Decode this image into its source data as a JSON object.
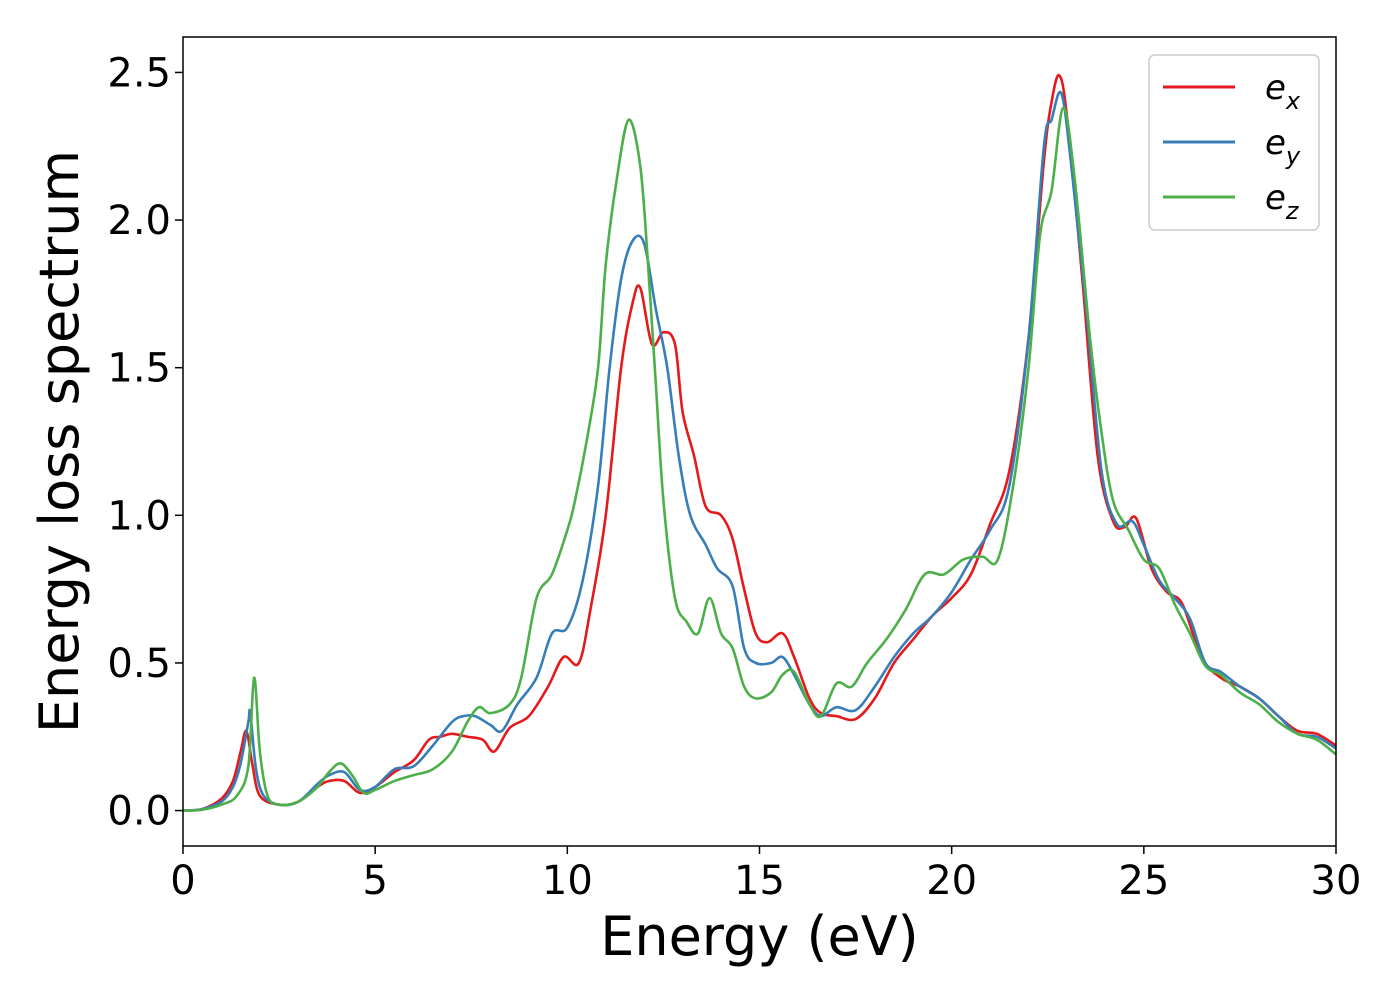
{
  "chart_data": {
    "type": "line",
    "title": "",
    "xlabel": "Energy (eV)",
    "ylabel": "Energy loss spectrum",
    "xlim": [
      0,
      30
    ],
    "ylim": [
      -0.12,
      2.62
    ],
    "xticks": [
      0,
      5,
      10,
      15,
      20,
      25,
      30
    ],
    "yticks": [
      "0.0",
      "0.5",
      "1.0",
      "1.5",
      "2.0",
      "2.5"
    ],
    "grid": false,
    "legend_position": "top-right",
    "series": [
      {
        "name": "e_x",
        "label_main": "e",
        "label_sub": "x",
        "color": "#e41a1c",
        "points": [
          [
            0,
            0
          ],
          [
            0.5,
            0.005
          ],
          [
            1.0,
            0.04
          ],
          [
            1.3,
            0.1
          ],
          [
            1.5,
            0.2
          ],
          [
            1.65,
            0.27
          ],
          [
            1.8,
            0.16
          ],
          [
            2.0,
            0.05
          ],
          [
            2.5,
            0.02
          ],
          [
            3.0,
            0.03
          ],
          [
            3.5,
            0.08
          ],
          [
            3.8,
            0.1
          ],
          [
            4.2,
            0.1
          ],
          [
            4.6,
            0.06
          ],
          [
            5.0,
            0.08
          ],
          [
            5.5,
            0.13
          ],
          [
            6.0,
            0.17
          ],
          [
            6.4,
            0.24
          ],
          [
            6.7,
            0.25
          ],
          [
            7.0,
            0.26
          ],
          [
            7.4,
            0.25
          ],
          [
            7.8,
            0.24
          ],
          [
            8.1,
            0.2
          ],
          [
            8.5,
            0.28
          ],
          [
            9.0,
            0.32
          ],
          [
            9.5,
            0.42
          ],
          [
            9.9,
            0.52
          ],
          [
            10.3,
            0.5
          ],
          [
            10.6,
            0.68
          ],
          [
            11.0,
            1.0
          ],
          [
            11.4,
            1.5
          ],
          [
            11.7,
            1.72
          ],
          [
            11.9,
            1.77
          ],
          [
            12.2,
            1.58
          ],
          [
            12.5,
            1.62
          ],
          [
            12.8,
            1.58
          ],
          [
            13.0,
            1.35
          ],
          [
            13.3,
            1.2
          ],
          [
            13.6,
            1.03
          ],
          [
            14.0,
            1.0
          ],
          [
            14.3,
            0.92
          ],
          [
            14.6,
            0.75
          ],
          [
            14.9,
            0.6
          ],
          [
            15.2,
            0.57
          ],
          [
            15.6,
            0.6
          ],
          [
            15.9,
            0.52
          ],
          [
            16.3,
            0.38
          ],
          [
            16.6,
            0.33
          ],
          [
            17.0,
            0.32
          ],
          [
            17.5,
            0.31
          ],
          [
            18.0,
            0.38
          ],
          [
            18.5,
            0.5
          ],
          [
            19.0,
            0.58
          ],
          [
            19.5,
            0.66
          ],
          [
            20.0,
            0.72
          ],
          [
            20.5,
            0.8
          ],
          [
            21.0,
            0.97
          ],
          [
            21.5,
            1.15
          ],
          [
            22.0,
            1.6
          ],
          [
            22.4,
            2.2
          ],
          [
            22.6,
            2.4
          ],
          [
            22.8,
            2.49
          ],
          [
            23.0,
            2.35
          ],
          [
            23.4,
            1.8
          ],
          [
            23.8,
            1.2
          ],
          [
            24.2,
            0.98
          ],
          [
            24.5,
            0.96
          ],
          [
            24.8,
            0.99
          ],
          [
            25.2,
            0.82
          ],
          [
            25.6,
            0.74
          ],
          [
            26.0,
            0.7
          ],
          [
            26.5,
            0.52
          ],
          [
            27.0,
            0.45
          ],
          [
            27.5,
            0.42
          ],
          [
            28.0,
            0.38
          ],
          [
            28.5,
            0.32
          ],
          [
            29.0,
            0.27
          ],
          [
            29.5,
            0.26
          ],
          [
            30.0,
            0.22
          ]
        ]
      },
      {
        "name": "e_y",
        "label_main": "e",
        "label_sub": "y",
        "color": "#377eb8",
        "points": [
          [
            0,
            0
          ],
          [
            0.5,
            0.005
          ],
          [
            1.0,
            0.03
          ],
          [
            1.3,
            0.08
          ],
          [
            1.5,
            0.16
          ],
          [
            1.7,
            0.3
          ],
          [
            1.75,
            0.33
          ],
          [
            1.9,
            0.14
          ],
          [
            2.1,
            0.05
          ],
          [
            2.5,
            0.02
          ],
          [
            3.0,
            0.03
          ],
          [
            3.5,
            0.09
          ],
          [
            3.8,
            0.12
          ],
          [
            4.2,
            0.13
          ],
          [
            4.6,
            0.07
          ],
          [
            5.0,
            0.08
          ],
          [
            5.5,
            0.14
          ],
          [
            6.0,
            0.15
          ],
          [
            6.5,
            0.22
          ],
          [
            7.0,
            0.3
          ],
          [
            7.3,
            0.32
          ],
          [
            7.6,
            0.32
          ],
          [
            8.0,
            0.29
          ],
          [
            8.3,
            0.27
          ],
          [
            8.7,
            0.36
          ],
          [
            9.2,
            0.45
          ],
          [
            9.6,
            0.6
          ],
          [
            10.0,
            0.62
          ],
          [
            10.4,
            0.78
          ],
          [
            10.8,
            1.1
          ],
          [
            11.1,
            1.5
          ],
          [
            11.4,
            1.8
          ],
          [
            11.7,
            1.93
          ],
          [
            12.0,
            1.92
          ],
          [
            12.3,
            1.7
          ],
          [
            12.6,
            1.5
          ],
          [
            12.9,
            1.2
          ],
          [
            13.2,
            1.0
          ],
          [
            13.6,
            0.9
          ],
          [
            13.9,
            0.82
          ],
          [
            14.3,
            0.76
          ],
          [
            14.6,
            0.55
          ],
          [
            14.9,
            0.5
          ],
          [
            15.3,
            0.5
          ],
          [
            15.6,
            0.52
          ],
          [
            15.9,
            0.46
          ],
          [
            16.3,
            0.36
          ],
          [
            16.6,
            0.32
          ],
          [
            17.0,
            0.35
          ],
          [
            17.5,
            0.34
          ],
          [
            18.0,
            0.42
          ],
          [
            18.5,
            0.52
          ],
          [
            19.0,
            0.6
          ],
          [
            19.5,
            0.66
          ],
          [
            20.0,
            0.74
          ],
          [
            20.5,
            0.85
          ],
          [
            21.0,
            0.95
          ],
          [
            21.5,
            1.1
          ],
          [
            22.0,
            1.6
          ],
          [
            22.4,
            2.25
          ],
          [
            22.6,
            2.34
          ],
          [
            22.85,
            2.43
          ],
          [
            23.1,
            2.2
          ],
          [
            23.5,
            1.7
          ],
          [
            23.9,
            1.15
          ],
          [
            24.3,
            0.97
          ],
          [
            24.7,
            0.98
          ],
          [
            25.0,
            0.9
          ],
          [
            25.4,
            0.78
          ],
          [
            25.8,
            0.72
          ],
          [
            26.2,
            0.65
          ],
          [
            26.6,
            0.5
          ],
          [
            27.0,
            0.47
          ],
          [
            27.5,
            0.42
          ],
          [
            28.0,
            0.38
          ],
          [
            28.5,
            0.32
          ],
          [
            29.0,
            0.26
          ],
          [
            29.5,
            0.25
          ],
          [
            30.0,
            0.21
          ]
        ]
      },
      {
        "name": "e_z",
        "label_main": "e",
        "label_sub": "z",
        "color": "#4daf4a",
        "points": [
          [
            0,
            0
          ],
          [
            0.5,
            0.003
          ],
          [
            1.0,
            0.02
          ],
          [
            1.4,
            0.05
          ],
          [
            1.7,
            0.15
          ],
          [
            1.85,
            0.45
          ],
          [
            2.0,
            0.2
          ],
          [
            2.2,
            0.05
          ],
          [
            2.5,
            0.02
          ],
          [
            3.0,
            0.03
          ],
          [
            3.5,
            0.08
          ],
          [
            3.8,
            0.13
          ],
          [
            4.1,
            0.16
          ],
          [
            4.4,
            0.12
          ],
          [
            4.7,
            0.06
          ],
          [
            5.0,
            0.07
          ],
          [
            5.5,
            0.1
          ],
          [
            6.0,
            0.12
          ],
          [
            6.5,
            0.14
          ],
          [
            7.0,
            0.2
          ],
          [
            7.4,
            0.3
          ],
          [
            7.7,
            0.35
          ],
          [
            8.0,
            0.33
          ],
          [
            8.5,
            0.36
          ],
          [
            8.8,
            0.45
          ],
          [
            9.2,
            0.72
          ],
          [
            9.6,
            0.8
          ],
          [
            10.0,
            0.95
          ],
          [
            10.2,
            1.05
          ],
          [
            10.5,
            1.25
          ],
          [
            10.8,
            1.5
          ],
          [
            11.0,
            1.85
          ],
          [
            11.3,
            2.15
          ],
          [
            11.6,
            2.34
          ],
          [
            11.9,
            2.18
          ],
          [
            12.1,
            1.85
          ],
          [
            12.3,
            1.45
          ],
          [
            12.5,
            1.05
          ],
          [
            12.8,
            0.72
          ],
          [
            13.1,
            0.64
          ],
          [
            13.4,
            0.6
          ],
          [
            13.7,
            0.72
          ],
          [
            14.0,
            0.6
          ],
          [
            14.3,
            0.55
          ],
          [
            14.6,
            0.42
          ],
          [
            14.9,
            0.38
          ],
          [
            15.3,
            0.4
          ],
          [
            15.6,
            0.46
          ],
          [
            15.9,
            0.47
          ],
          [
            16.3,
            0.36
          ],
          [
            16.6,
            0.32
          ],
          [
            17.0,
            0.43
          ],
          [
            17.4,
            0.42
          ],
          [
            17.8,
            0.5
          ],
          [
            18.3,
            0.58
          ],
          [
            18.8,
            0.68
          ],
          [
            19.3,
            0.8
          ],
          [
            19.8,
            0.8
          ],
          [
            20.3,
            0.85
          ],
          [
            20.8,
            0.86
          ],
          [
            21.2,
            0.85
          ],
          [
            21.6,
            1.1
          ],
          [
            22.0,
            1.5
          ],
          [
            22.3,
            1.95
          ],
          [
            22.6,
            2.1
          ],
          [
            22.9,
            2.38
          ],
          [
            23.2,
            2.14
          ],
          [
            23.6,
            1.6
          ],
          [
            23.9,
            1.28
          ],
          [
            24.2,
            1.05
          ],
          [
            24.6,
            0.95
          ],
          [
            25.0,
            0.85
          ],
          [
            25.4,
            0.82
          ],
          [
            25.8,
            0.7
          ],
          [
            26.2,
            0.6
          ],
          [
            26.6,
            0.49
          ],
          [
            27.0,
            0.46
          ],
          [
            27.5,
            0.4
          ],
          [
            28.0,
            0.36
          ],
          [
            28.5,
            0.3
          ],
          [
            29.0,
            0.26
          ],
          [
            29.5,
            0.24
          ],
          [
            30.0,
            0.19
          ]
        ]
      }
    ]
  }
}
